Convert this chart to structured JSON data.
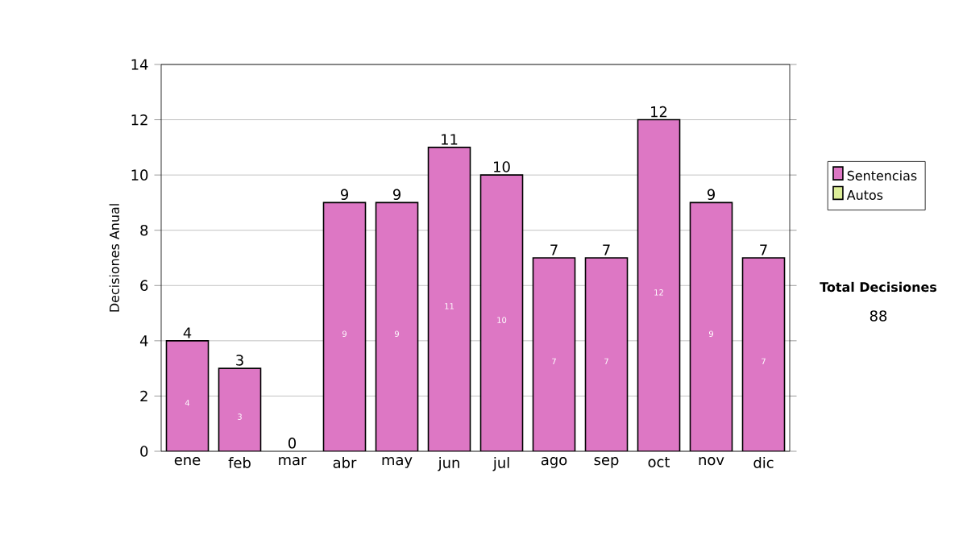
{
  "chart_data": {
    "type": "bar",
    "stacked": true,
    "categories": [
      "ene",
      "feb",
      "mar",
      "abr",
      "may",
      "jun",
      "jul",
      "ago",
      "sep",
      "oct",
      "nov",
      "dic"
    ],
    "series": [
      {
        "name": "Sentencias",
        "color": "#dd77c4",
        "values": [
          4,
          3,
          0,
          9,
          9,
          11,
          10,
          7,
          7,
          12,
          9,
          7
        ],
        "value_labels": [
          "4",
          "3",
          null,
          "9",
          "9",
          "11",
          "10",
          "7",
          "7",
          "12",
          "9",
          "7"
        ]
      },
      {
        "name": "Autos",
        "color": "#ddee99",
        "values": [
          0,
          0,
          0,
          0,
          0,
          0,
          0,
          0,
          0,
          0,
          0,
          0
        ]
      }
    ],
    "ylabel": "Decisiones Anual",
    "ylim": [
      0,
      14
    ],
    "yticks": [
      0,
      2,
      4,
      6,
      8,
      10,
      12,
      14
    ],
    "grid": "y",
    "legend": "right",
    "totals": [
      "4",
      "3",
      "0",
      "9",
      "9",
      "11",
      "10",
      "7",
      "7",
      "12",
      "9",
      "7"
    ],
    "annotations": [
      "Total Decisiones",
      "88"
    ]
  }
}
